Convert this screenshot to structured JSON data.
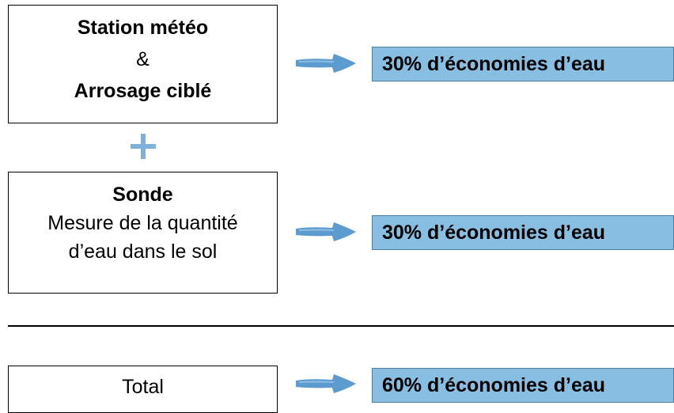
{
  "row1": {
    "title": "Station météo",
    "connector": "&",
    "subtitle": "Arrosage ciblé",
    "result": "30% d’économies d’eau"
  },
  "row2": {
    "title": "Sonde",
    "line1": "Mesure de la quantité",
    "line2": "d’eau dans le sol",
    "result": "30% d’économies d’eau"
  },
  "total": {
    "label": "Total",
    "result": "60% d’économies d’eau"
  },
  "colors": {
    "result_fill": "#87BEE2",
    "arrow": "#5B9BD0",
    "plus": "#7FB2DA"
  },
  "icons": {
    "arrow": "arrow-right-icon",
    "plus": "plus-icon"
  }
}
